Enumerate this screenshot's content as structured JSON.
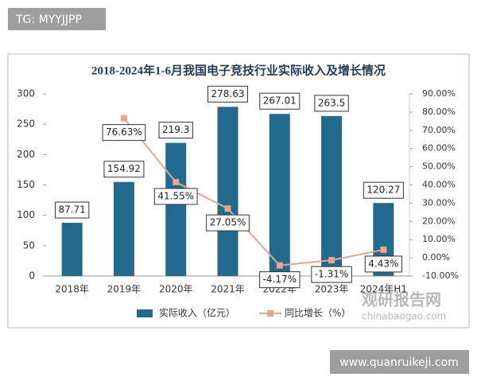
{
  "chart_data": {
    "type": "bar",
    "title": "2018-2024年1-6月我国电子竞技行业实际收入及增长情况",
    "categories": [
      "2018年",
      "2019年",
      "2020年",
      "2021年",
      "2022年",
      "2023年",
      "2024年H1"
    ],
    "series": [
      {
        "name": "实际收入（亿元）",
        "type": "bar",
        "color": "#236b8e",
        "values": [
          87.71,
          154.92,
          219.3,
          278.63,
          267.01,
          263.5,
          120.27
        ]
      },
      {
        "name": "同比增长（%）",
        "type": "line",
        "axis": "y2",
        "color": "#e8a58c",
        "values": [
          null,
          76.63,
          41.55,
          27.05,
          -4.17,
          -1.31,
          4.43
        ],
        "value_labels": [
          null,
          "76.63%",
          "41.55%",
          "27.05%",
          "-4.17%",
          "-1.31%",
          "4.43%"
        ]
      }
    ],
    "ylim": [
      0,
      300
    ],
    "yticks": [
      0,
      50,
      100,
      150,
      200,
      250,
      300
    ],
    "y2lim": [
      -10,
      90
    ],
    "y2ticks": [
      {
        "value": -10,
        "label": "-10.00%"
      },
      {
        "value": 0,
        "label": "0.00%"
      },
      {
        "value": 10,
        "label": "10.00%"
      },
      {
        "value": 20,
        "label": "20.00%"
      },
      {
        "value": 30,
        "label": "30.00%"
      },
      {
        "value": 40,
        "label": "40.00%"
      },
      {
        "value": 50,
        "label": "50.00%"
      },
      {
        "value": 60,
        "label": "60.00%"
      },
      {
        "value": 70,
        "label": "70.00%"
      },
      {
        "value": 80,
        "label": "80.00%"
      },
      {
        "value": 90,
        "label": "90.00%"
      }
    ],
    "legend": "bottom"
  },
  "watermarks": {
    "tag": "TG: MYYJJPP",
    "logo": "观研报告网",
    "logo_url": "chinabaogao.com",
    "site": "www.quanruikeji.com"
  }
}
